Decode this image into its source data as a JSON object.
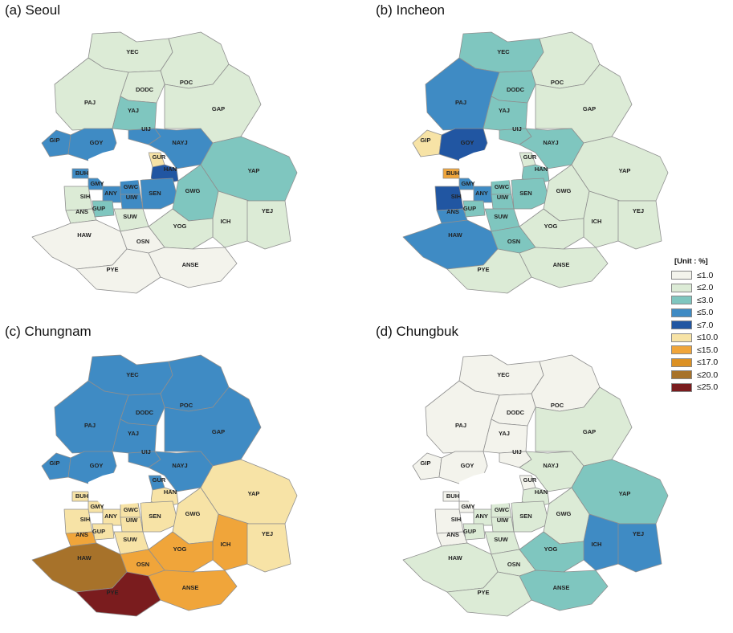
{
  "panels": [
    {
      "title": "(a) Seoul",
      "regions": {
        "YEC": "≤2.0",
        "POC": "≤2.0",
        "PAJ": "≤2.0",
        "DODC": "≤2.0",
        "YAJ": "≤3.0",
        "GAP": "≤2.0",
        "GIP": "≤5.0",
        "GOY": "≤5.0",
        "UIJ": "≤5.0",
        "NAYJ": "≤5.0",
        "GUR": "≤10.0",
        "HAN": "≤7.0",
        "YAP": "≤3.0",
        "BUH": "≤5.0",
        "GMY": "≤5.0",
        "SIH": "≤2.0",
        "ANY": "≤5.0",
        "GWC": "≤5.0",
        "UIW": "≤5.0",
        "SEN": "≤5.0",
        "GWG": "≤3.0",
        "ANS": "≤2.0",
        "GUP": "≤3.0",
        "SUW": "≤2.0",
        "ICH": "≤2.0",
        "YEJ": "≤2.0",
        "YOG": "≤2.0",
        "HAW": "≤1.0",
        "OSN": "≤1.0",
        "PYE": "≤1.0",
        "ANSE": "≤1.0"
      }
    },
    {
      "title": "(b) Incheon",
      "regions": {
        "YEC": "≤3.0",
        "POC": "≤2.0",
        "PAJ": "≤5.0",
        "DODC": "≤3.0",
        "YAJ": "≤3.0",
        "GAP": "≤2.0",
        "GIP": "≤10.0",
        "GOY": "≤7.0",
        "UIJ": "≤3.0",
        "NAYJ": "≤3.0",
        "GUR": "≤2.0",
        "HAN": "≤3.0",
        "YAP": "≤2.0",
        "BUH": "≤15.0",
        "GMY": "≤5.0",
        "SIH": "≤7.0",
        "ANY": "≤5.0",
        "GWC": "≤3.0",
        "UIW": "≤3.0",
        "SEN": "≤3.0",
        "GWG": "≤2.0",
        "ANS": "≤5.0",
        "GUP": "≤3.0",
        "SUW": "≤3.0",
        "ICH": "≤2.0",
        "YEJ": "≤2.0",
        "YOG": "≤2.0",
        "HAW": "≤5.0",
        "OSN": "≤3.0",
        "PYE": "≤2.0",
        "ANSE": "≤2.0"
      }
    },
    {
      "title": "(c) Chungnam",
      "regions": {
        "YEC": "≤5.0",
        "POC": "≤5.0",
        "PAJ": "≤5.0",
        "DODC": "≤5.0",
        "YAJ": "≤5.0",
        "GAP": "≤5.0",
        "GIP": "≤5.0",
        "GOY": "≤5.0",
        "UIJ": "≤5.0",
        "NAYJ": "≤5.0",
        "GUR": "≤5.0",
        "HAN": "≤10.0",
        "YAP": "≤10.0",
        "BUH": "≤10.0",
        "GMY": "≤10.0",
        "SIH": "≤10.0",
        "ANY": "≤10.0",
        "GWC": "≤10.0",
        "UIW": "≤10.0",
        "SEN": "≤10.0",
        "GWG": "≤10.0",
        "ANS": "≤15.0",
        "GUP": "≤10.0",
        "SUW": "≤10.0",
        "ICH": "≤15.0",
        "YEJ": "≤10.0",
        "YOG": "≤15.0",
        "HAW": "≤20.0",
        "OSN": "≤15.0",
        "PYE": "≤25.0",
        "ANSE": "≤15.0"
      }
    },
    {
      "title": "(d) Chungbuk",
      "regions": {
        "YEC": "≤1.0",
        "POC": "≤1.0",
        "PAJ": "≤1.0",
        "DODC": "≤1.0",
        "YAJ": "≤1.0",
        "GAP": "≤2.0",
        "GIP": "≤1.0",
        "GOY": "≤1.0",
        "UIJ": "≤1.0",
        "NAYJ": "≤2.0",
        "GUR": "≤1.0",
        "HAN": "≤2.0",
        "YAP": "≤3.0",
        "BUH": "≤1.0",
        "GMY": "≤1.0",
        "SIH": "≤1.0",
        "ANY": "≤2.0",
        "GWC": "≤2.0",
        "UIW": "≤2.0",
        "SEN": "≤2.0",
        "GWG": "≤2.0",
        "ANS": "≤1.0",
        "GUP": "≤2.0",
        "SUW": "≤2.0",
        "ICH": "≤5.0",
        "YEJ": "≤5.0",
        "YOG": "≤3.0",
        "HAW": "≤2.0",
        "OSN": "≤2.0",
        "PYE": "≤2.0",
        "ANSE": "≤3.0"
      }
    }
  ],
  "legend": {
    "title": "[Unit : %]",
    "items": [
      {
        "label": "≤1.0",
        "color": "#f3f3ec"
      },
      {
        "label": "≤2.0",
        "color": "#dcebd6"
      },
      {
        "label": "≤3.0",
        "color": "#7fc6bf"
      },
      {
        "label": "≤5.0",
        "color": "#3f8bc4"
      },
      {
        "label": "≤7.0",
        "color": "#2156a2"
      },
      {
        "label": "≤10.0",
        "color": "#f7e3a6"
      },
      {
        "label": "≤15.0",
        "color": "#f0a53a"
      },
      {
        "label": "≤17.0",
        "color": "#dc9124"
      },
      {
        "label": "≤20.0",
        "color": "#a7722a"
      },
      {
        "label": "≤25.0",
        "color": "#7a1c1e"
      }
    ]
  }
}
